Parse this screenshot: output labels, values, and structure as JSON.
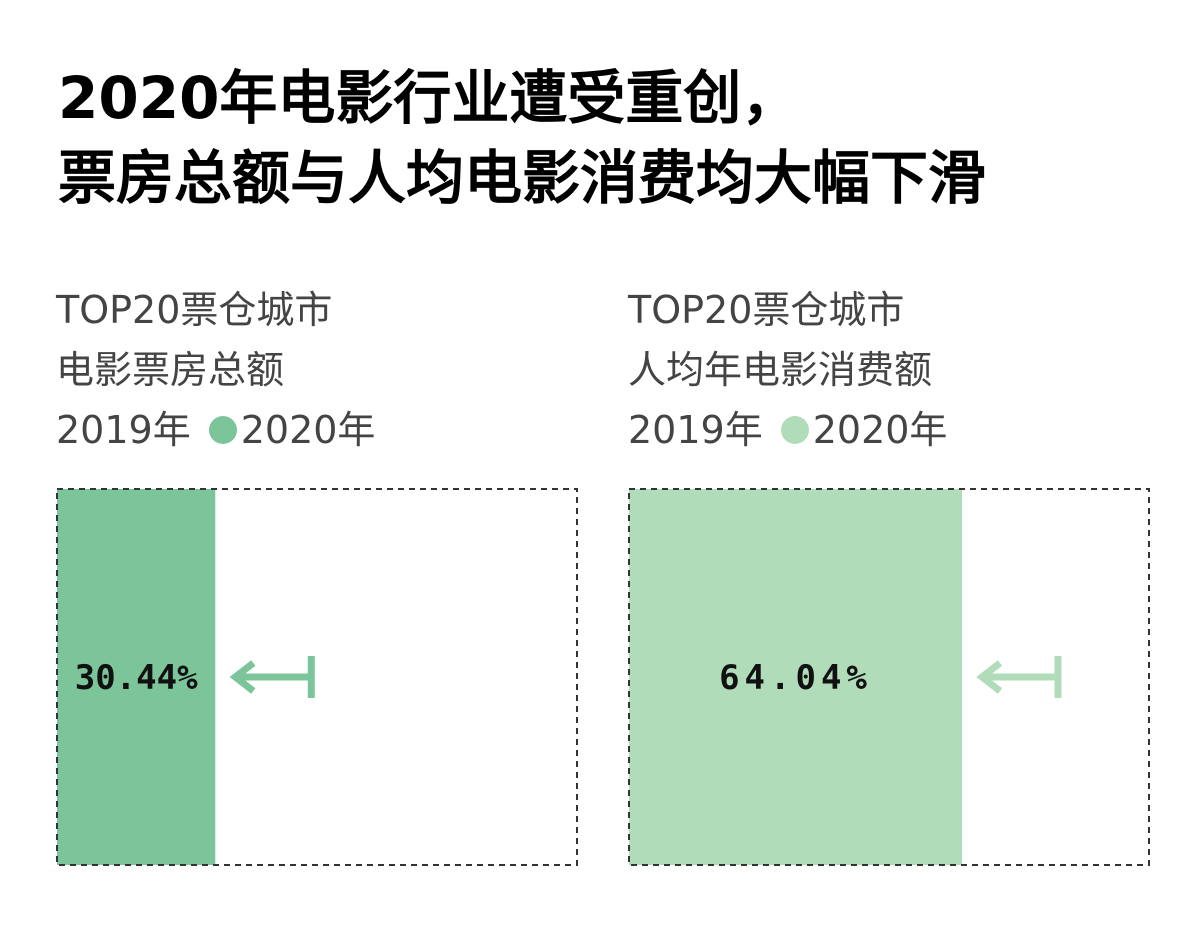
{
  "title": {
    "line1": "2020年电影行业遭受重创，",
    "line2": "票房总额与人均电影消费均大幅下滑"
  },
  "colors": {
    "left_fill": "#7cc59a",
    "right_fill": "#b1dcb9",
    "border": "#333333"
  },
  "panels": [
    {
      "subtitle1": "TOP20票仓城市",
      "subtitle2": "电影票房总额",
      "legend_year1": "2019年",
      "legend_year2": "2020年",
      "value_label": "30.44%"
    },
    {
      "subtitle1": "TOP20票仓城市",
      "subtitle2": "人均年电影消费额",
      "legend_year1": "2019年",
      "legend_year2": "2020年",
      "value_label": "64.04%"
    }
  ],
  "chart_data": [
    {
      "type": "bar",
      "categories": [
        "2019年",
        "2020年"
      ],
      "values": [
        100,
        30.44
      ],
      "unit": "%"
    },
    {
      "type": "bar",
      "categories": [
        "2019年",
        "2020年"
      ],
      "values": [
        100,
        64.04
      ],
      "unit": "%"
    }
  ]
}
